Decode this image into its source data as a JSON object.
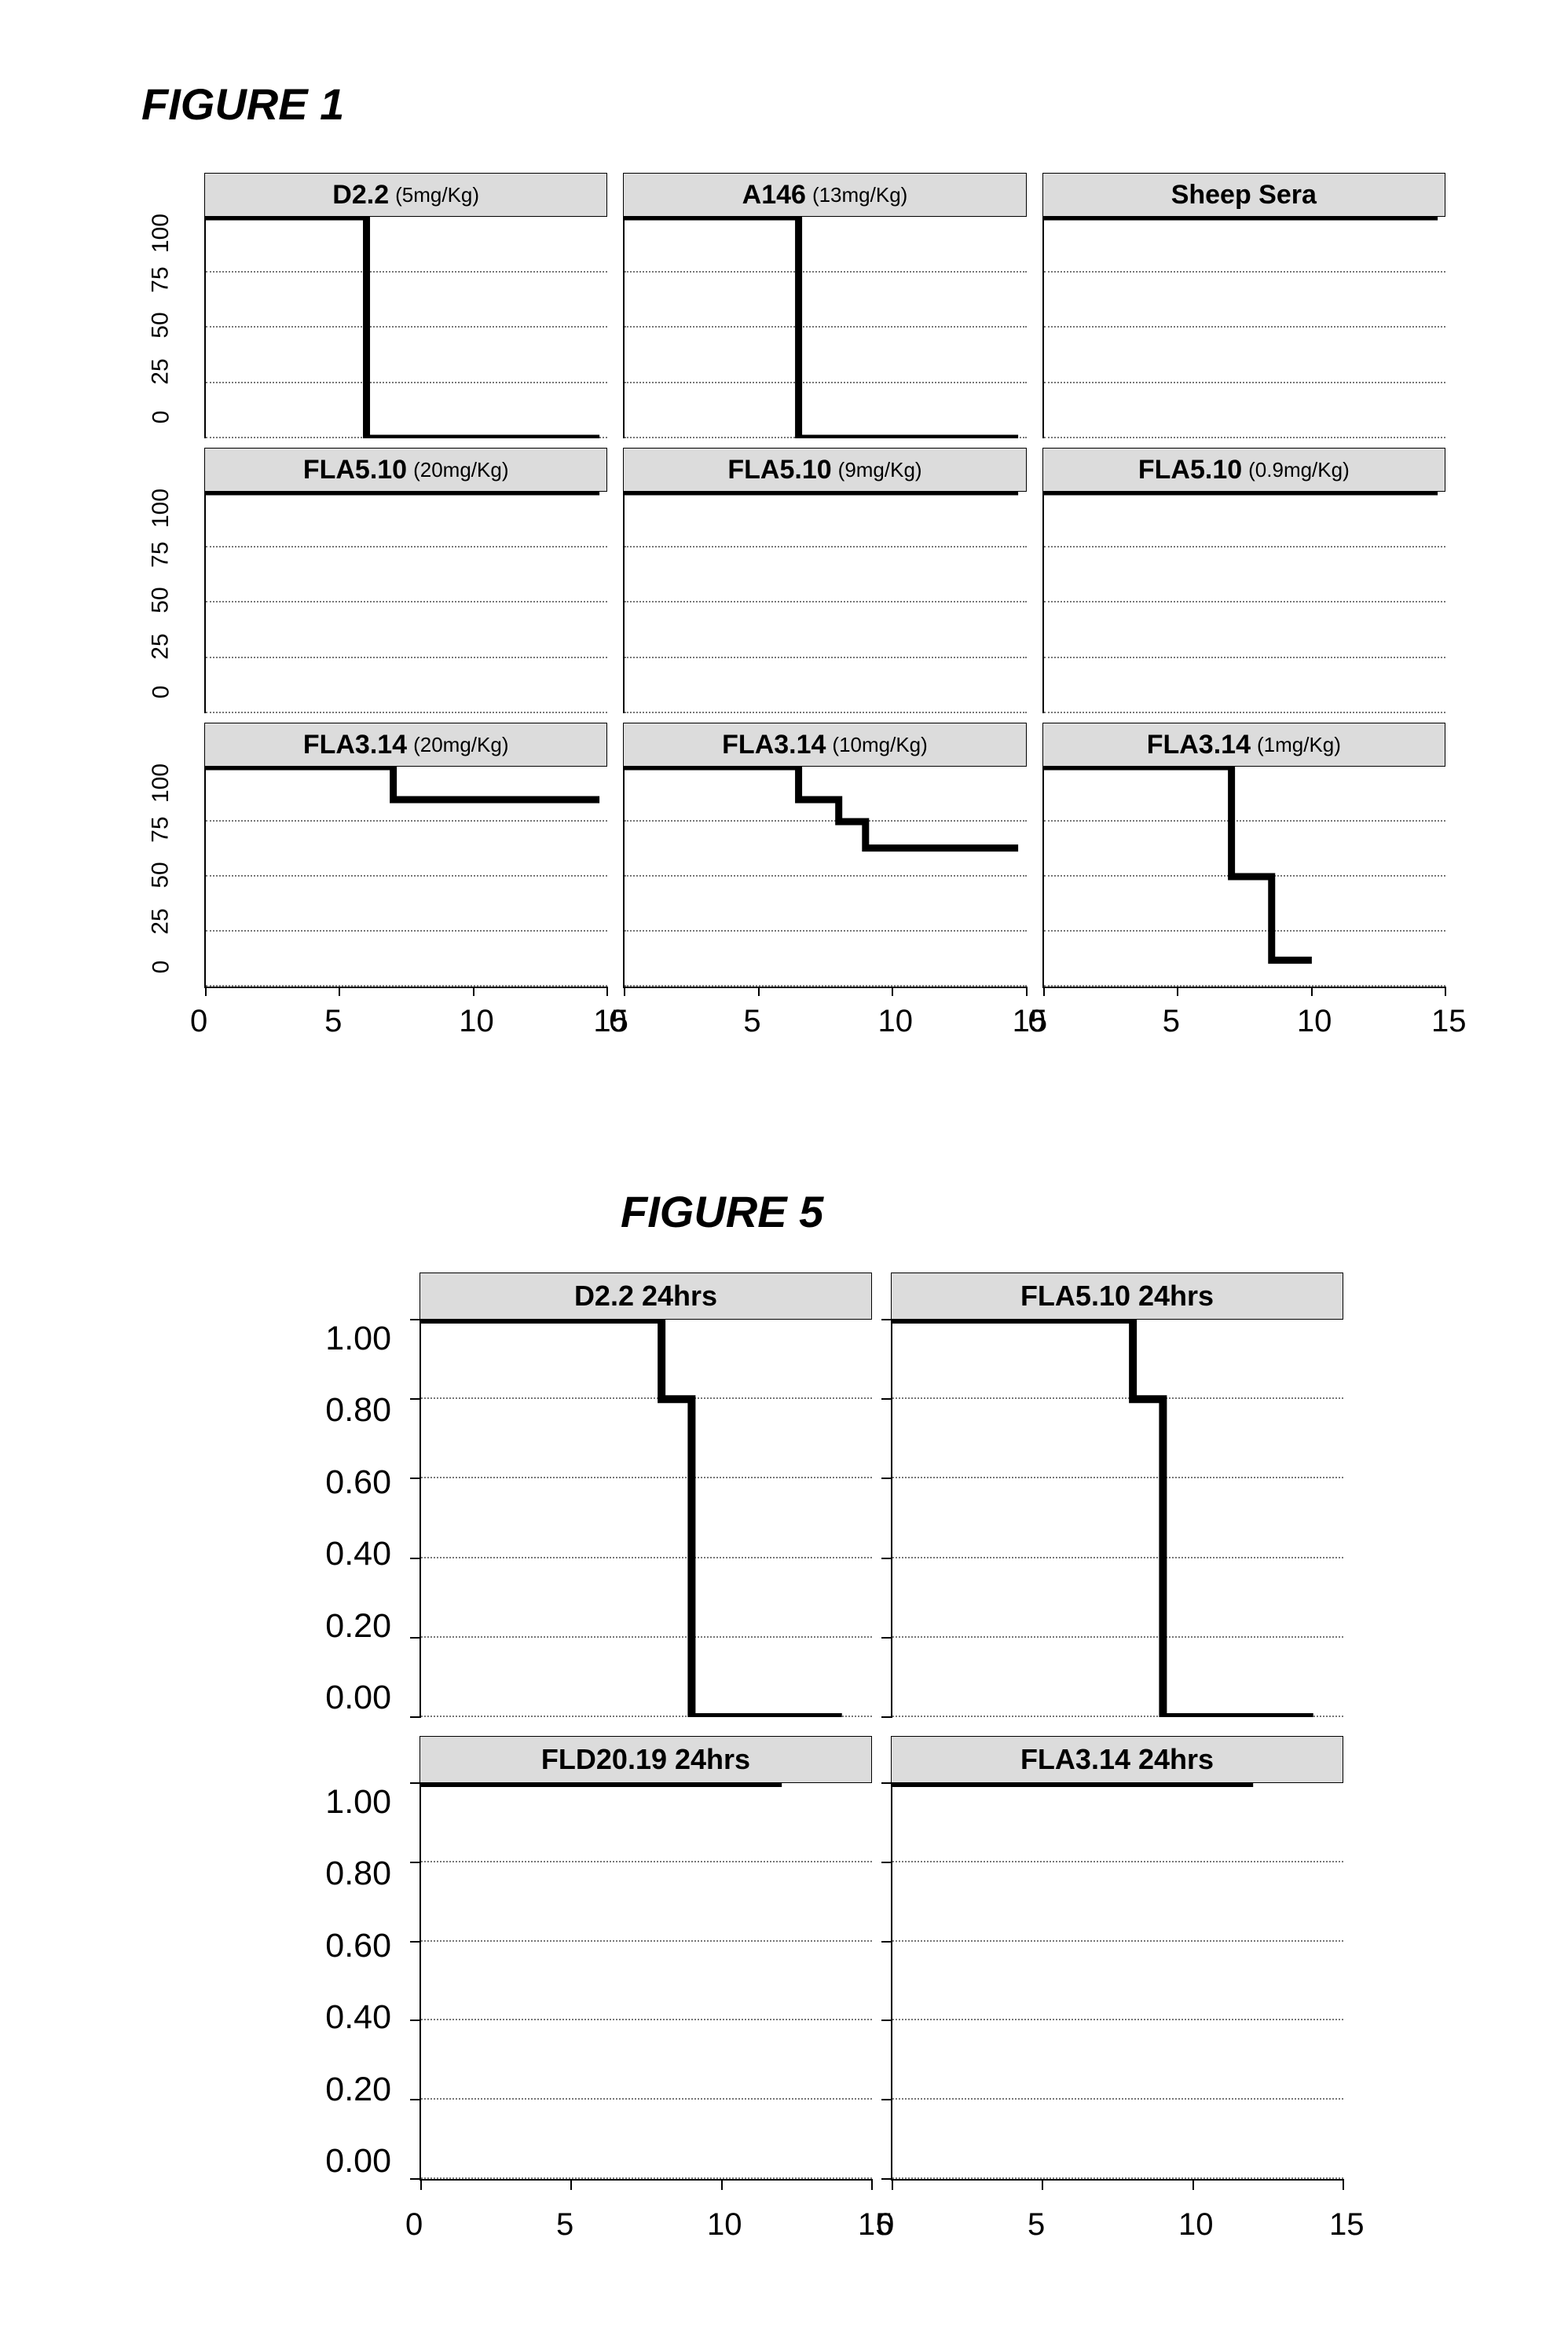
{
  "figure1": {
    "title": "FIGURE 1",
    "title_fontsize": 56,
    "grid_color": "#777777",
    "strip_bg": "#dcdcdc",
    "line_color": "#000000",
    "line_width": 9,
    "ylim": [
      0,
      100
    ],
    "yticks": [
      0,
      25,
      50,
      75,
      100
    ],
    "xlim": [
      0,
      15
    ],
    "xticks": [
      0,
      5,
      10,
      15
    ],
    "xtick_fontsize": 40,
    "ytick_fontsize": 30,
    "strip_fontsize_main": 34,
    "strip_fontsize_sub": 26,
    "panels": [
      {
        "main": "D2.2",
        "sub": "(5mg/Kg)",
        "drops": [
          {
            "x": 6,
            "from": 100,
            "to": 0
          }
        ]
      },
      {
        "main": "A146",
        "sub": "(13mg/Kg)",
        "drops": [
          {
            "x": 6.5,
            "from": 100,
            "to": 0
          }
        ]
      },
      {
        "main": "Sheep Sera",
        "sub": "",
        "drops": []
      },
      {
        "main": "FLA5.10",
        "sub": "(20mg/Kg)",
        "drops": []
      },
      {
        "main": "FLA5.10",
        "sub": "(9mg/Kg)",
        "drops": []
      },
      {
        "main": "FLA5.10",
        "sub": "(0.9mg/Kg)",
        "drops": []
      },
      {
        "main": "FLA3.14",
        "sub": "(20mg/Kg)",
        "drops": [
          {
            "x": 7,
            "from": 100,
            "to": 85
          }
        ]
      },
      {
        "main": "FLA3.14",
        "sub": "(10mg/Kg)",
        "drops": [
          {
            "x": 6.5,
            "from": 100,
            "to": 85
          },
          {
            "x": 8,
            "from": 85,
            "to": 75
          },
          {
            "x": 9,
            "from": 75,
            "to": 63
          }
        ]
      },
      {
        "main": "FLA3.14",
        "sub": "(1mg/Kg)",
        "drops": [
          {
            "x": 7,
            "from": 100,
            "to": 50
          },
          {
            "x": 8.5,
            "from": 50,
            "to": 12
          }
        ]
      }
    ]
  },
  "figure5": {
    "title": "FIGURE 5",
    "title_fontsize": 56,
    "grid_color": "#777777",
    "strip_bg": "#dcdcdc",
    "line_color": "#000000",
    "line_width": 10,
    "ylim": [
      0,
      1.0
    ],
    "yticks": [
      "0.00",
      "0.20",
      "0.40",
      "0.60",
      "0.80",
      "1.00"
    ],
    "ytick_values": [
      0.0,
      0.2,
      0.4,
      0.6,
      0.8,
      1.0
    ],
    "xlim": [
      0,
      15
    ],
    "xticks": [
      0,
      5,
      10,
      15
    ],
    "xtick_fontsize": 40,
    "ytick_fontsize": 43,
    "strip_fontsize": 36,
    "panels": [
      {
        "label": "D2.2  24hrs",
        "drops": [
          {
            "x": 8,
            "from": 1.0,
            "to": 0.8
          },
          {
            "x": 9,
            "from": 0.8,
            "to": 0.0
          }
        ]
      },
      {
        "label": "FLA5.10  24hrs",
        "drops": [
          {
            "x": 8,
            "from": 1.0,
            "to": 0.8
          },
          {
            "x": 9,
            "from": 0.8,
            "to": 0.0
          }
        ]
      },
      {
        "label": "FLD20.19  24hrs",
        "drops": []
      },
      {
        "label": "FLA3.14  24hrs",
        "drops": []
      }
    ]
  }
}
